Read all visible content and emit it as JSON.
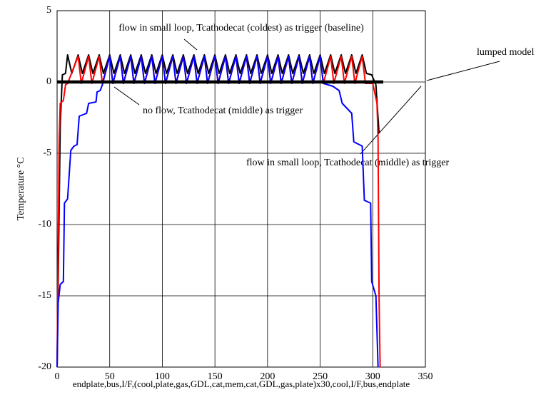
{
  "chart_data": {
    "type": "line",
    "xlabel": "endplate,bus,I/F,(cool,plate,gas,GDL,cat,mem,cat,GDL,gas,plate)x30,cool,I/F,bus,endplate",
    "ylabel": "Temperature °C",
    "xlim": [
      0,
      350
    ],
    "xticks": [
      0,
      50,
      100,
      150,
      200,
      250,
      300,
      350
    ],
    "ylim": [
      -20,
      5
    ],
    "yticks": [
      -20,
      -15,
      -10,
      -5,
      0,
      5
    ],
    "grid": true,
    "annotations": [
      "flow in small loop, Tcathodecat (coldest) as trigger (baseline)",
      "lumped model",
      "no flow, Tcathodecat (middle) as trigger",
      "flow in small loop, Tcathodecat (middle) as trigger"
    ],
    "series": [
      {
        "name": "flow in small loop, Tcathodecat (coldest) as trigger (baseline)",
        "color": "#000000",
        "width": 2,
        "x": [
          0,
          3,
          5,
          8,
          10,
          14,
          20,
          24,
          30,
          34,
          40,
          44,
          50,
          54,
          60,
          64,
          70,
          74,
          80,
          84,
          90,
          94,
          100,
          104,
          110,
          114,
          120,
          124,
          130,
          134,
          140,
          144,
          150,
          154,
          160,
          164,
          170,
          174,
          180,
          184,
          190,
          194,
          200,
          204,
          210,
          214,
          220,
          224,
          230,
          234,
          240,
          244,
          250,
          254,
          260,
          264,
          270,
          274,
          280,
          284,
          290,
          294,
          299,
          303,
          306
        ],
        "values": [
          -20,
          -3,
          0.5,
          0.6,
          1.9,
          0.6,
          1.9,
          0.6,
          1.9,
          0.6,
          1.9,
          0.6,
          1.9,
          0.6,
          1.9,
          0.6,
          1.9,
          0.6,
          1.9,
          0.6,
          1.9,
          0.6,
          1.9,
          0.6,
          1.9,
          0.6,
          1.9,
          0.6,
          1.9,
          0.6,
          1.9,
          0.6,
          1.9,
          0.6,
          1.9,
          0.6,
          1.9,
          0.6,
          1.9,
          0.6,
          1.9,
          0.6,
          1.9,
          0.6,
          1.9,
          0.6,
          1.9,
          0.6,
          1.9,
          0.6,
          1.9,
          0.6,
          1.9,
          0.6,
          1.9,
          0.6,
          1.9,
          0.6,
          1.9,
          0.6,
          1.9,
          0.6,
          0.5,
          -0.2,
          -3.6
        ]
      },
      {
        "name": "flow in small loop, Tcathodecat (middle) as trigger",
        "color": "#ff0000",
        "width": 2,
        "x": [
          0,
          2,
          3,
          6,
          8,
          10,
          20,
          23,
          30,
          33,
          40,
          43,
          50,
          53,
          60,
          63,
          70,
          73,
          80,
          83,
          90,
          93,
          100,
          103,
          110,
          113,
          120,
          123,
          130,
          133,
          140,
          143,
          150,
          153,
          160,
          163,
          170,
          173,
          180,
          183,
          190,
          193,
          200,
          203,
          210,
          213,
          220,
          223,
          230,
          233,
          240,
          243,
          250,
          253,
          260,
          263,
          270,
          273,
          280,
          283,
          290,
          293,
          300,
          304,
          305,
          306,
          307
        ],
        "values": [
          -20,
          -4,
          -1.5,
          -1.3,
          -0.2,
          -0.1,
          1.8,
          -0.1,
          1.8,
          -0.1,
          1.8,
          -0.1,
          1.8,
          -0.1,
          1.8,
          -0.1,
          1.8,
          -0.1,
          1.8,
          -0.1,
          1.8,
          -0.1,
          1.8,
          -0.1,
          1.8,
          -0.1,
          1.8,
          -0.1,
          1.8,
          -0.1,
          1.8,
          -0.1,
          1.8,
          -0.1,
          1.8,
          -0.1,
          1.8,
          -0.1,
          1.8,
          -0.1,
          1.8,
          -0.1,
          1.8,
          -0.1,
          1.8,
          -0.1,
          1.8,
          -0.1,
          1.8,
          -0.1,
          1.8,
          -0.1,
          1.8,
          -0.1,
          1.8,
          -0.1,
          1.8,
          -0.1,
          1.8,
          -0.1,
          1.8,
          -0.1,
          -0.1,
          -1.5,
          -4,
          -15,
          -20
        ]
      },
      {
        "name": "no flow, Tcathodecat (middle) as trigger",
        "color": "#0000ff",
        "width": 2,
        "x": [
          0,
          1,
          3,
          6,
          7,
          10,
          13,
          16,
          19,
          21,
          28,
          30,
          37,
          38,
          41,
          43,
          50,
          53,
          60,
          63,
          70,
          73,
          80,
          83,
          90,
          93,
          100,
          103,
          110,
          113,
          120,
          123,
          130,
          133,
          140,
          143,
          150,
          153,
          160,
          163,
          170,
          173,
          180,
          183,
          190,
          193,
          200,
          203,
          210,
          213,
          220,
          223,
          230,
          233,
          240,
          243,
          250,
          253,
          262,
          268,
          271,
          280,
          282,
          290,
          292,
          298,
          299,
          303,
          305
        ],
        "values": [
          -20,
          -15.5,
          -14.2,
          -14,
          -8.5,
          -8.2,
          -4.8,
          -4.5,
          -4.4,
          -2.4,
          -2.2,
          -1.5,
          -1.4,
          -0.7,
          -0.6,
          -0.2,
          1.8,
          -0.1,
          1.8,
          -0.1,
          1.8,
          -0.1,
          1.8,
          -0.1,
          1.8,
          -0.1,
          1.8,
          -0.1,
          1.8,
          -0.1,
          1.8,
          -0.1,
          1.8,
          -0.1,
          1.8,
          -0.1,
          1.8,
          -0.1,
          1.8,
          -0.1,
          1.8,
          -0.1,
          1.8,
          -0.1,
          1.8,
          -0.1,
          1.8,
          -0.1,
          1.8,
          -0.1,
          1.8,
          -0.1,
          1.8,
          -0.1,
          1.8,
          -0.1,
          1.8,
          -0.1,
          -0.3,
          -0.6,
          -1.5,
          -2.2,
          -4.2,
          -4.5,
          -8.3,
          -8.5,
          -14,
          -15,
          -20
        ]
      },
      {
        "name": "lumped model",
        "color": "#000000",
        "width": 4.5,
        "x": [
          0,
          310
        ],
        "values": [
          0,
          0
        ]
      }
    ]
  }
}
